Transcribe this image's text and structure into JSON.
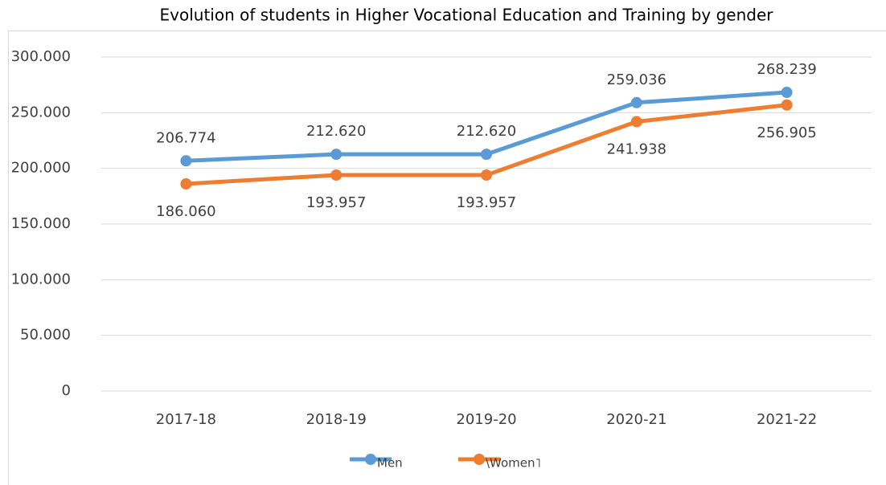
{
  "chart_data": {
    "type": "line",
    "title": "Evolution of students in Higher Vocational Education and Training by gender",
    "categories": [
      "2017-18",
      "2018-19",
      "2019-20",
      "2020-21",
      "2021-22"
    ],
    "series": [
      {
        "name": "Men",
        "color": "#5b9bd5",
        "values": [
          206774,
          212620,
          212620,
          259036,
          268239
        ],
        "value_labels": [
          "206.774",
          "212.620",
          "212.620",
          "259.036",
          "268.239"
        ]
      },
      {
        "name": "\\Women˥",
        "color": "#ed7d31",
        "values": [
          186060,
          193957,
          193957,
          241938,
          256905
        ],
        "value_labels": [
          "186.060",
          "193.957",
          "193.957",
          "241.938",
          "256.905"
        ]
      }
    ],
    "ylim": [
      0,
      300000
    ],
    "yticks": [
      0,
      {
        "value": 50000,
        "label": "50.000"
      },
      {
        "value": 100000,
        "label": "100.000"
      },
      {
        "value": 150000,
        "label": "150.000"
      },
      {
        "value": 200000,
        "label": "200.000"
      },
      {
        "value": 250000,
        "label": "250.000"
      },
      {
        "value": 300000,
        "label": "300.000"
      }
    ],
    "grid": true,
    "legend": "bottom"
  }
}
